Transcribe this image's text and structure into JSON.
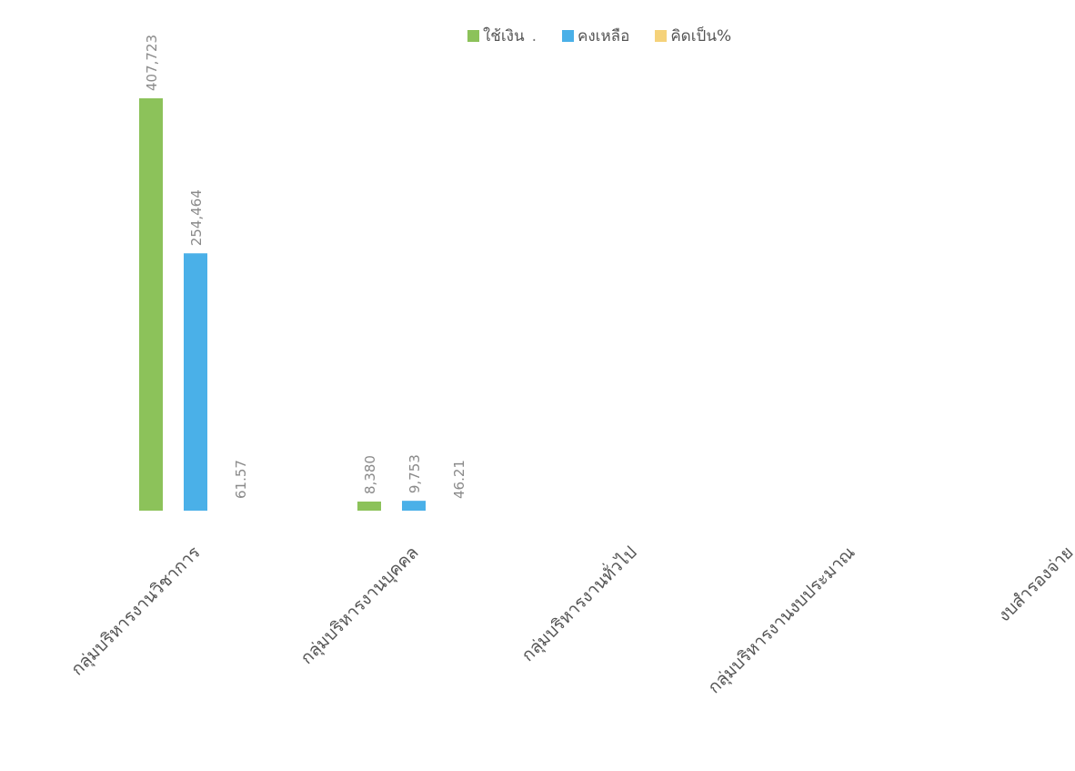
{
  "chart_data": {
    "type": "bar",
    "title": "",
    "xlabel": "",
    "ylabel": "",
    "categories": [
      "กลุ่มบริหารงานวิชาการ",
      "กลุ่มบริหารงานบุคคล",
      "กลุ่มบริหารงานทั่วไป",
      "กลุ่มบริหารงานงบประมาณ",
      "งบสำรองจ่าย"
    ],
    "series": [
      {
        "name": "ใช้เงิน",
        "color": "#8cc25a",
        "values": [
          407723,
          8380,
          null,
          null,
          null
        ],
        "labels": [
          "407,723",
          "8,380",
          "",
          "",
          ""
        ]
      },
      {
        "name": "คงเหลือ",
        "color": "#4ab0e8",
        "values": [
          254464,
          9753,
          null,
          null,
          null
        ],
        "labels": [
          "254,464",
          "9,753",
          "",
          "",
          ""
        ]
      },
      {
        "name": "คิดเป็น%",
        "color": "#f5d27a",
        "values": [
          61.57,
          46.21,
          null,
          null,
          null
        ],
        "labels": [
          "61.57",
          "46.21",
          "",
          "",
          ""
        ]
      }
    ],
    "ylim": [
      0,
      407723
    ],
    "grid": false,
    "legend_position": "top-right",
    "legend_extra_marker": "."
  }
}
